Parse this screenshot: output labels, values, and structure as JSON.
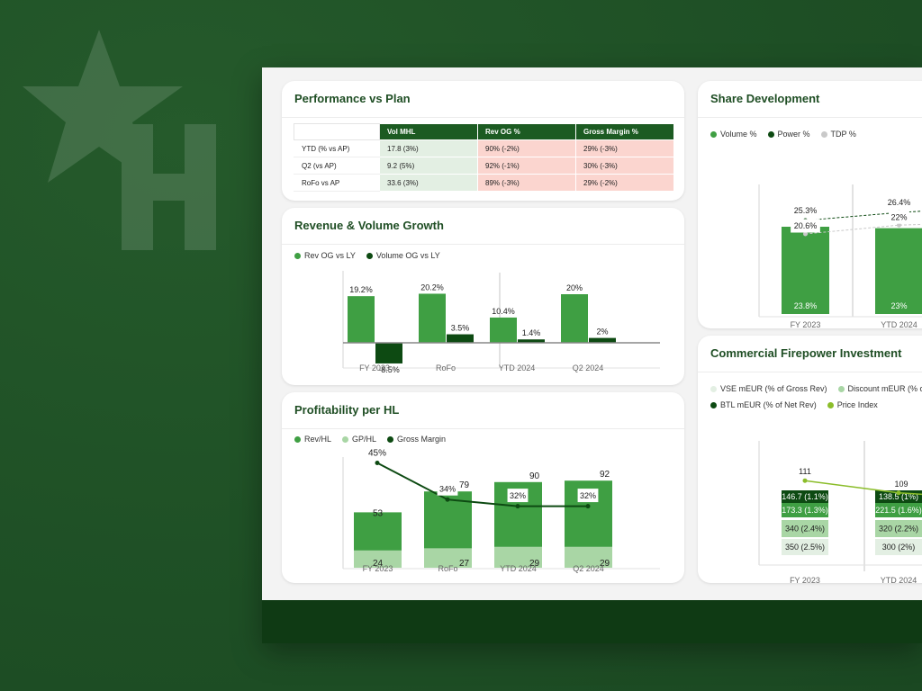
{
  "colors": {
    "dark_green": "#0d4a12",
    "mid_green": "#3f9f43",
    "light_green": "#a9d6a5",
    "price_index": "#8bbd2a",
    "tdp_grey": "#c9c9c9",
    "header_green": "#1c5b22",
    "good_cell": "#e3efe3",
    "bad_cell": "#fbd5cf"
  },
  "background_logo": {
    "icon": "star-h-logo-icon"
  },
  "performance": {
    "title": "Performance vs Plan",
    "columns": [
      "Vol MHL",
      "Rev OG %",
      "Gross Margin %"
    ],
    "rows": [
      {
        "label": "YTD (% vs AP)",
        "vol": "17.8 (3%)",
        "rev": "90% (-2%)",
        "gm": "29% (-3%)"
      },
      {
        "label": "Q2 (vs AP)",
        "vol": "9.2 (5%)",
        "rev": "92% (-1%)",
        "gm": "30% (-3%)"
      },
      {
        "label": "RoFo vs AP",
        "vol": "33.6  (3%)",
        "rev": "89% (-3%)",
        "gm": "29% (-2%)"
      }
    ]
  },
  "revenue": {
    "title": "Revenue & Volume Growth",
    "legend": [
      "Rev OG vs LY",
      "Volume OG vs LY"
    ],
    "chart_data": {
      "type": "bar",
      "categories": [
        "FY 2023",
        "RoFo",
        "YTD 2024",
        "Q2 2024"
      ],
      "series": [
        {
          "name": "Rev OG vs LY",
          "values": [
            19.2,
            20.2,
            10.4,
            20
          ],
          "labels": [
            "19.2%",
            "20.2%",
            "10.4%",
            "20%"
          ]
        },
        {
          "name": "Volume OG vs LY",
          "values": [
            -8.5,
            3.5,
            1.4,
            2
          ],
          "labels": [
            "-8.5%",
            "3.5%",
            "1.4%",
            "2%"
          ]
        }
      ],
      "ylim": [
        -10,
        25
      ]
    }
  },
  "profit": {
    "title": "Profitability per HL",
    "legend": [
      "Rev/HL",
      "GP/HL",
      "Gross Margin"
    ],
    "chart_data": {
      "type": "bar",
      "categories": [
        "FY 2023",
        "RoFo",
        "YTD 2024",
        "Q2 2024"
      ],
      "series": [
        {
          "name": "Rev/HL",
          "values": [
            53,
            79,
            90,
            92
          ],
          "labels": [
            "53",
            "79",
            "90",
            "92"
          ]
        },
        {
          "name": "GP/HL",
          "values": [
            24,
            27,
            29,
            29
          ],
          "labels": [
            "24",
            "27",
            "29",
            "29"
          ]
        },
        {
          "name": "Gross Margin",
          "values": [
            45,
            34,
            32,
            32
          ],
          "labels": [
            "45%",
            "34%",
            "32%",
            "32%"
          ]
        }
      ]
    }
  },
  "share": {
    "title": "Share Development",
    "legend": [
      "Volume %",
      "Power %",
      "TDP %"
    ],
    "chart_data": {
      "type": "bar",
      "categories": [
        "FY 2023",
        "YTD 2024"
      ],
      "series": [
        {
          "name": "Volume %",
          "values": [
            23.8,
            23
          ],
          "labels": [
            "23.8%",
            "23%"
          ]
        },
        {
          "name": "Power %",
          "values": [
            25.3,
            26.4
          ],
          "labels": [
            "25.3%",
            "26.4%"
          ]
        },
        {
          "name": "TDP %",
          "values": [
            20.6,
            22
          ],
          "labels": [
            "20.6%",
            "22%"
          ]
        }
      ]
    }
  },
  "firepower": {
    "title": "Commercial Firepower Investment",
    "legend": [
      "VSE mEUR (% of Gross Rev)",
      "Discount mEUR (% of",
      "BTL mEUR (% of Net Rev)",
      "Price Index"
    ],
    "chart_data": {
      "type": "bar",
      "categories": [
        "FY 2023",
        "YTD 2024"
      ],
      "series": [
        {
          "name": "BTL mEUR (% of Net Rev)",
          "labels": [
            "146.7 (1.1%)",
            "138.5 (1%)"
          ]
        },
        {
          "name": "Discount mEUR (% of",
          "labels": [
            "173.3 (1.3%)",
            "221.5 (1.6%)"
          ]
        },
        {
          "name": "VSE mEUR (% of Gross Rev)",
          "labels": [
            "340 (2.4%)",
            "320 (2.2%)"
          ]
        },
        {
          "name": "VSE mEUR (% of Gross Rev)",
          "labels": [
            "350 (2.5%)",
            "300 (2%)"
          ]
        },
        {
          "name": "Price Index",
          "values": [
            111,
            109
          ],
          "labels": [
            "111",
            "109"
          ]
        }
      ]
    }
  }
}
